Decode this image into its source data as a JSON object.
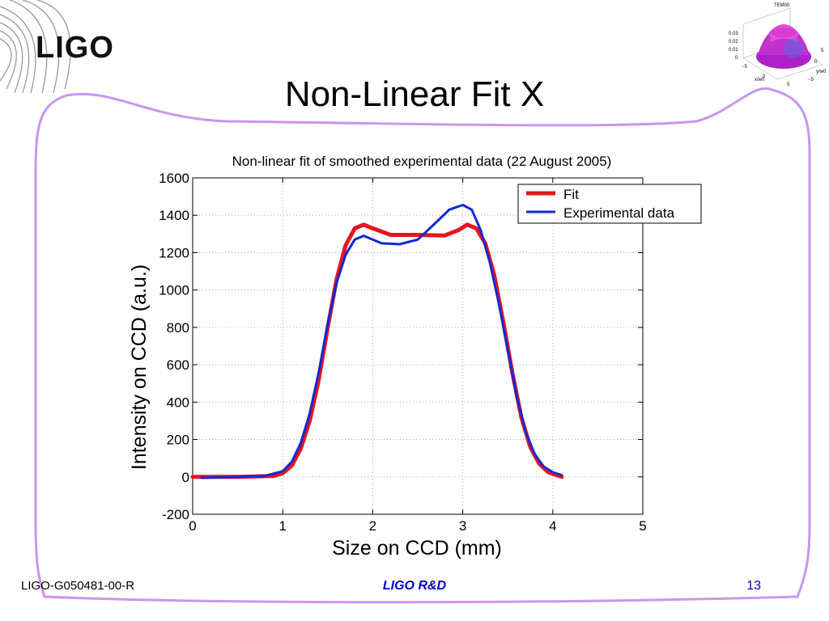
{
  "slide": {
    "logo": "LIGO",
    "title": "Non-Linear Fit X",
    "footer_left": "LIGO-G050481-00-R",
    "footer_center": "LIGO R&D",
    "page_number": "13"
  },
  "thumbnail": {
    "title": "TEM00",
    "z_ticks": [
      "0.03",
      "0.02",
      "0.01",
      "0"
    ],
    "x_ticks": [
      "−5",
      "0",
      "5"
    ],
    "y_ticks": [
      "5",
      "0",
      "−5"
    ],
    "x_label": "x/w0",
    "y_label": "y/w0"
  },
  "colors": {
    "fit": "#e8141c",
    "experimental": "#1428d2",
    "frame": "#c896ee",
    "footer": "#0000cc"
  },
  "chart_data": {
    "type": "line",
    "title": "Non-linear fit of smoothed experimental data (22 August 2005)",
    "xlabel": "Size on CCD (mm)",
    "ylabel": "Intensity on CCD (a.u.)",
    "xlim": [
      0,
      5
    ],
    "ylim": [
      -200,
      1600
    ],
    "xticks": [
      0,
      1,
      2,
      3,
      4,
      5
    ],
    "yticks": [
      -200,
      0,
      200,
      400,
      600,
      800,
      1000,
      1200,
      1400,
      1600
    ],
    "grid": true,
    "legend_position": "top-right",
    "series": [
      {
        "name": "Fit",
        "color": "#e8141c",
        "points": [
          [
            0,
            0
          ],
          [
            0.5,
            0
          ],
          [
            0.9,
            5
          ],
          [
            1.0,
            20
          ],
          [
            1.1,
            60
          ],
          [
            1.2,
            150
          ],
          [
            1.3,
            300
          ],
          [
            1.4,
            520
          ],
          [
            1.5,
            800
          ],
          [
            1.6,
            1060
          ],
          [
            1.7,
            1240
          ],
          [
            1.8,
            1330
          ],
          [
            1.9,
            1350
          ],
          [
            2.0,
            1330
          ],
          [
            2.2,
            1295
          ],
          [
            2.5,
            1295
          ],
          [
            2.8,
            1292
          ],
          [
            2.95,
            1320
          ],
          [
            3.05,
            1350
          ],
          [
            3.15,
            1330
          ],
          [
            3.25,
            1250
          ],
          [
            3.35,
            1080
          ],
          [
            3.45,
            830
          ],
          [
            3.55,
            560
          ],
          [
            3.65,
            320
          ],
          [
            3.75,
            160
          ],
          [
            3.85,
            70
          ],
          [
            3.95,
            25
          ],
          [
            4.1,
            0
          ]
        ]
      },
      {
        "name": "Experimental data",
        "color": "#1428d2",
        "points": [
          [
            0.1,
            -5
          ],
          [
            0.5,
            0
          ],
          [
            0.8,
            5
          ],
          [
            1.0,
            30
          ],
          [
            1.1,
            80
          ],
          [
            1.2,
            180
          ],
          [
            1.3,
            340
          ],
          [
            1.4,
            560
          ],
          [
            1.5,
            820
          ],
          [
            1.6,
            1040
          ],
          [
            1.7,
            1190
          ],
          [
            1.8,
            1270
          ],
          [
            1.9,
            1290
          ],
          [
            2.0,
            1270
          ],
          [
            2.1,
            1250
          ],
          [
            2.3,
            1245
          ],
          [
            2.5,
            1270
          ],
          [
            2.7,
            1360
          ],
          [
            2.85,
            1430
          ],
          [
            3.0,
            1455
          ],
          [
            3.1,
            1430
          ],
          [
            3.2,
            1320
          ],
          [
            3.3,
            1150
          ],
          [
            3.4,
            930
          ],
          [
            3.5,
            680
          ],
          [
            3.6,
            430
          ],
          [
            3.7,
            240
          ],
          [
            3.8,
            120
          ],
          [
            3.9,
            55
          ],
          [
            4.0,
            25
          ],
          [
            4.1,
            10
          ]
        ]
      }
    ]
  }
}
